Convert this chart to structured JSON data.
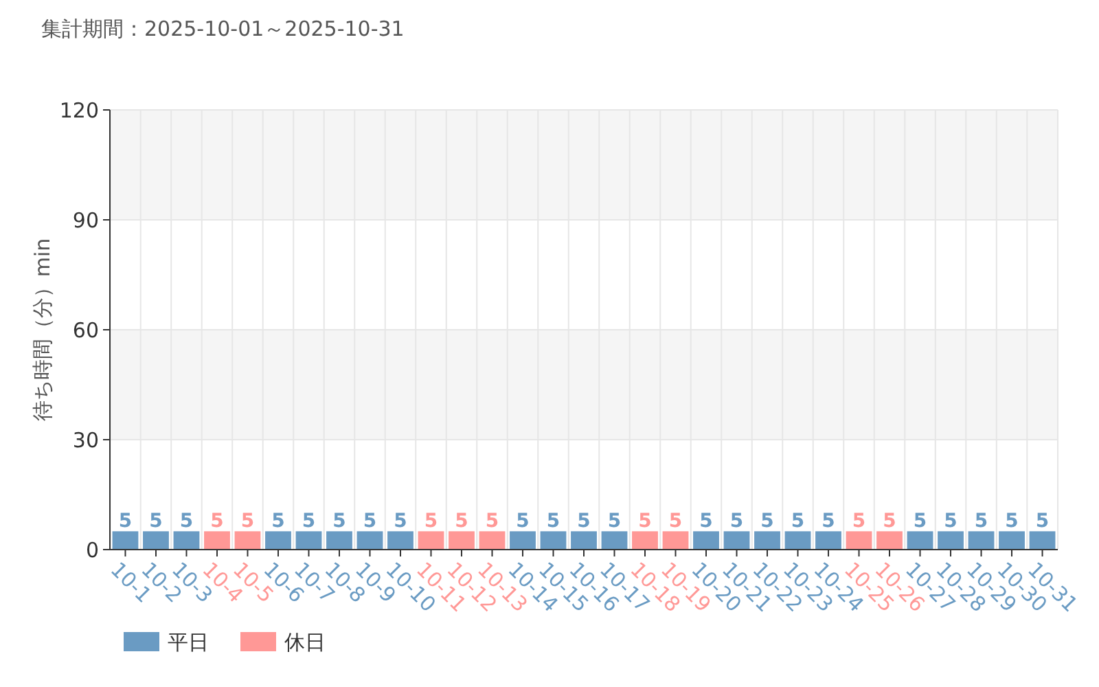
{
  "chart_data": {
    "type": "bar",
    "title": "集計期間：2025-10-01～2025-10-31",
    "ylabel": "待ち時間（分）min",
    "categories": [
      "10-1",
      "10-2",
      "10-3",
      "10-4",
      "10-5",
      "10-6",
      "10-7",
      "10-8",
      "10-9",
      "10-10",
      "10-11",
      "10-12",
      "10-13",
      "10-14",
      "10-15",
      "10-16",
      "10-17",
      "10-18",
      "10-19",
      "10-20",
      "10-21",
      "10-22",
      "10-23",
      "10-24",
      "10-25",
      "10-26",
      "10-27",
      "10-28",
      "10-29",
      "10-30",
      "10-31"
    ],
    "series": [
      {
        "name": "平日",
        "color": "#6a9bc3",
        "values": [
          5,
          5,
          5,
          null,
          null,
          5,
          5,
          5,
          5,
          5,
          null,
          null,
          null,
          5,
          5,
          5,
          5,
          null,
          null,
          5,
          5,
          5,
          5,
          5,
          null,
          null,
          5,
          5,
          5,
          5,
          5
        ]
      },
      {
        "name": "休日",
        "color": "#ff9896",
        "values": [
          null,
          null,
          null,
          5,
          5,
          null,
          null,
          null,
          null,
          null,
          5,
          5,
          5,
          null,
          null,
          null,
          null,
          5,
          5,
          null,
          null,
          null,
          null,
          null,
          5,
          5,
          null,
          null,
          null,
          null,
          null
        ]
      }
    ],
    "ylim": [
      0,
      120
    ],
    "yticks": [
      0,
      30,
      60,
      90,
      120
    ],
    "grid": true,
    "data_labels": true,
    "legend": "bottom left"
  }
}
